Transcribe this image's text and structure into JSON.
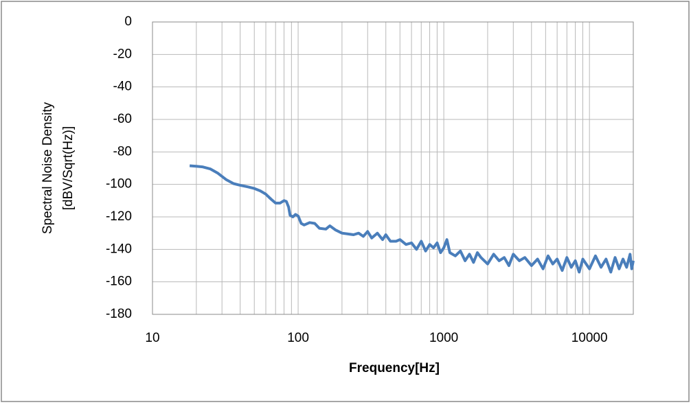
{
  "chart_data": {
    "type": "line",
    "x_label": "Frequency[Hz]",
    "y_label": [
      "Spectral Noise Density",
      "[dBV/Sqrt(Hz)]"
    ],
    "x_log_scale": true,
    "grid": true,
    "x_minor_grid": true,
    "xlim": [
      10,
      20000
    ],
    "xticks": [
      10,
      100,
      1000,
      10000
    ],
    "ylim": [
      -180,
      0
    ],
    "yticks": [
      0,
      -20,
      -40,
      -60,
      -80,
      -100,
      -120,
      -140,
      -160,
      -180
    ],
    "series": [
      {
        "name": "Spectral Noise Density",
        "color": "#4a7ebb",
        "x": [
          18,
          20,
          22,
          25,
          28,
          32,
          36,
          40,
          45,
          50,
          55,
          60,
          65,
          70,
          75,
          80,
          83,
          86,
          88,
          92,
          96,
          100,
          105,
          110,
          120,
          130,
          140,
          155,
          165,
          180,
          200,
          220,
          240,
          260,
          280,
          300,
          320,
          350,
          380,
          400,
          430,
          470,
          500,
          550,
          600,
          650,
          700,
          750,
          800,
          850,
          900,
          950,
          1000,
          1050,
          1100,
          1200,
          1300,
          1400,
          1500,
          1600,
          1700,
          1800,
          2000,
          2200,
          2400,
          2600,
          2800,
          3000,
          3300,
          3600,
          4000,
          4400,
          4800,
          5200,
          5600,
          6000,
          6500,
          7000,
          7500,
          8000,
          8500,
          9000,
          10000,
          11000,
          12000,
          13000,
          14000,
          15000,
          16000,
          17000,
          18000,
          19000,
          19500,
          20000
        ],
        "values": [
          -88.5,
          -88.8,
          -89.2,
          -90.5,
          -93,
          -97,
          -99.5,
          -100.5,
          -101.5,
          -102.5,
          -104,
          -106,
          -109,
          -111.5,
          -111.5,
          -110,
          -110.5,
          -114,
          -119,
          -120,
          -118.5,
          -119.5,
          -124,
          -125,
          -123.5,
          -124,
          -127,
          -127.5,
          -125.5,
          -128,
          -130,
          -130.5,
          -131,
          -130,
          -132,
          -129,
          -133,
          -130,
          -134,
          -131,
          -135,
          -135,
          -134,
          -137,
          -136,
          -140,
          -135,
          -141,
          -137,
          -139,
          -136,
          -142,
          -139,
          -134,
          -142,
          -144,
          -141,
          -147,
          -143,
          -148,
          -142,
          -145,
          -149,
          -143,
          -147,
          -145,
          -150,
          -143,
          -147,
          -145,
          -150,
          -146,
          -152,
          -144,
          -149,
          -146,
          -153,
          -145,
          -151,
          -147,
          -154,
          -146,
          -152,
          -144,
          -151,
          -146,
          -154,
          -145,
          -152,
          -146,
          -151,
          -143,
          -152,
          -147
        ]
      }
    ]
  }
}
